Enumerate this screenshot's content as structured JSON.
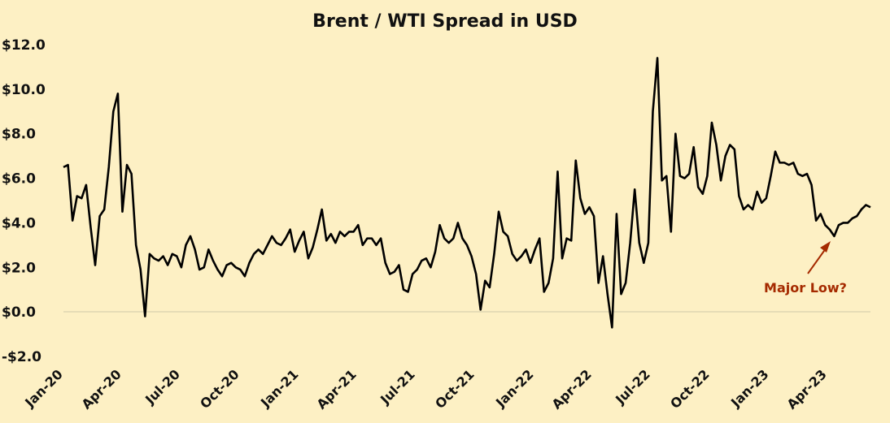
{
  "chart_data": {
    "type": "line",
    "title": "Brent / WTI Spread in USD",
    "ylim": [
      -2,
      12
    ],
    "yticks": [
      12,
      10,
      8,
      6,
      4,
      2,
      0,
      -2
    ],
    "ytick_labels": [
      "$12.0",
      "$10.0",
      "$8.0",
      "$6.0",
      "$4.0",
      "$2.0",
      "$0.0",
      "-$2.0"
    ],
    "xticks": [
      "Jan-20",
      "Apr-20",
      "Jul-20",
      "Oct-20",
      "Jan-21",
      "Apr-21",
      "Jul-21",
      "Oct-21",
      "Jan-22",
      "Apr-22",
      "Jul-22",
      "Oct-22",
      "Jan-23",
      "Apr-23"
    ],
    "grid": false,
    "series": [
      {
        "color": "#000000",
        "values": [
          6.5,
          6.6,
          4.1,
          5.2,
          5.1,
          5.7,
          3.8,
          2.1,
          4.3,
          4.6,
          6.5,
          9.0,
          9.8,
          4.5,
          6.6,
          6.2,
          3.0,
          1.9,
          -0.2,
          2.6,
          2.4,
          2.3,
          2.5,
          2.1,
          2.6,
          2.5,
          2.0,
          3.0,
          3.4,
          2.8,
          1.9,
          2.0,
          2.8,
          2.3,
          1.9,
          1.6,
          2.1,
          2.2,
          2.0,
          1.9,
          1.6,
          2.2,
          2.6,
          2.8,
          2.6,
          3.0,
          3.4,
          3.1,
          3.0,
          3.3,
          3.7,
          2.7,
          3.2,
          3.6,
          2.4,
          2.9,
          3.7,
          4.6,
          3.2,
          3.5,
          3.1,
          3.6,
          3.4,
          3.6,
          3.6,
          3.9,
          3.0,
          3.3,
          3.3,
          3.0,
          3.3,
          2.2,
          1.7,
          1.8,
          2.1,
          1.0,
          0.9,
          1.7,
          1.9,
          2.3,
          2.4,
          2.0,
          2.7,
          3.9,
          3.3,
          3.1,
          3.3,
          4.0,
          3.3,
          3.0,
          2.5,
          1.7,
          0.1,
          1.4,
          1.1,
          2.6,
          4.5,
          3.6,
          3.4,
          2.6,
          2.3,
          2.5,
          2.8,
          2.2,
          2.8,
          3.3,
          0.9,
          1.3,
          2.4,
          6.3,
          2.4,
          3.3,
          3.2,
          6.8,
          5.1,
          4.4,
          4.7,
          4.3,
          1.3,
          2.5,
          0.8,
          -0.7,
          4.4,
          0.8,
          1.3,
          3.1,
          5.5,
          3.1,
          2.2,
          3.1,
          9.0,
          11.4,
          5.9,
          6.1,
          3.6,
          8.0,
          6.1,
          6.0,
          6.2,
          7.4,
          5.6,
          5.3,
          6.1,
          8.5,
          7.5,
          5.9,
          7.0,
          7.5,
          7.3,
          5.2,
          4.6,
          4.8,
          4.6,
          5.4,
          4.9,
          5.1,
          6.1,
          7.2,
          6.7,
          6.7,
          6.6,
          6.7,
          6.2,
          6.1,
          6.2,
          5.7,
          4.1,
          4.4,
          3.9,
          3.7,
          3.4,
          3.9,
          4.0,
          4.0,
          4.2,
          4.3,
          4.6,
          4.8,
          4.7
        ]
      }
    ],
    "annotations": [
      {
        "text": "Major Low?",
        "color": "#a52a00"
      }
    ]
  }
}
